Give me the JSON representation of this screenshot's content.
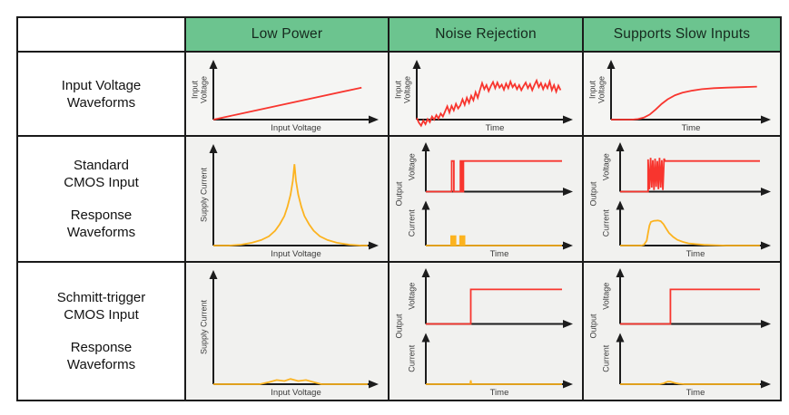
{
  "colors": {
    "header_bg": "#6cc48f",
    "header_text": "#16291e",
    "border": "#1a1a1a",
    "axis": "#1c1c1c",
    "red": "#f8352e",
    "orange": "#fcb31f",
    "label_text": "#121212",
    "axis_label_text": "#3b3b3b",
    "row1_cell_bg": "#f5f5f3",
    "row23_cell_bg": "#f1f1ef"
  },
  "header": {
    "corner": "",
    "columns": [
      "Low Power",
      "Noise Rejection",
      "Supports Slow Inputs"
    ]
  },
  "rows": [
    {
      "label_lines": [
        "Input Voltage",
        "Waveforms"
      ]
    },
    {
      "label_lines": [
        "Standard",
        "CMOS Input",
        "",
        "Response",
        "Waveforms"
      ]
    },
    {
      "label_lines": [
        "Schmitt-trigger",
        "CMOS Input",
        "",
        "Response",
        "Waveforms"
      ]
    }
  ],
  "charts": {
    "r1c1": {
      "kind": "single",
      "color": "red",
      "ylabel_lines": [
        "Input",
        "Voltage"
      ],
      "xlabel": "Input Voltage",
      "points": [
        [
          0,
          0
        ],
        [
          96,
          63
        ]
      ]
    },
    "r1c2": {
      "kind": "single",
      "color": "red",
      "ylabel_lines": [
        "Input",
        "Voltage"
      ],
      "xlabel": "Time",
      "points": [
        [
          0,
          3
        ],
        [
          1.5,
          -6
        ],
        [
          3,
          -12
        ],
        [
          4.5,
          -2
        ],
        [
          6,
          -9
        ],
        [
          7.5,
          1
        ],
        [
          9,
          -5
        ],
        [
          10.5,
          6
        ],
        [
          12,
          0
        ],
        [
          13.5,
          9
        ],
        [
          15,
          2
        ],
        [
          16.5,
          12
        ],
        [
          18,
          6
        ],
        [
          19.5,
          16
        ],
        [
          21,
          26
        ],
        [
          22.5,
          14
        ],
        [
          24,
          27
        ],
        [
          25.5,
          18
        ],
        [
          27,
          31
        ],
        [
          28.5,
          22
        ],
        [
          30,
          28
        ],
        [
          31.5,
          40
        ],
        [
          33,
          29
        ],
        [
          34.5,
          43
        ],
        [
          36,
          33
        ],
        [
          37.5,
          47
        ],
        [
          39,
          38
        ],
        [
          40.5,
          54
        ],
        [
          42,
          43
        ],
        [
          43.5,
          58
        ],
        [
          45,
          72
        ],
        [
          46.5,
          60
        ],
        [
          48,
          68
        ],
        [
          49.5,
          56
        ],
        [
          51,
          66
        ],
        [
          52.5,
          74
        ],
        [
          54,
          62
        ],
        [
          55.5,
          73
        ],
        [
          57,
          63
        ],
        [
          58.5,
          69
        ],
        [
          60,
          59
        ],
        [
          61.5,
          71
        ],
        [
          63,
          62
        ],
        [
          64.5,
          75
        ],
        [
          66,
          64
        ],
        [
          67.5,
          70
        ],
        [
          69,
          60
        ],
        [
          70.5,
          68
        ],
        [
          72,
          58
        ],
        [
          73.5,
          66
        ],
        [
          75,
          73
        ],
        [
          76.5,
          62
        ],
        [
          78,
          70
        ],
        [
          79.5,
          58
        ],
        [
          81,
          68
        ],
        [
          82.5,
          77
        ],
        [
          84,
          64
        ],
        [
          85.5,
          72
        ],
        [
          87,
          60
        ],
        [
          88.5,
          70
        ],
        [
          90,
          62
        ],
        [
          91.5,
          75
        ],
        [
          93,
          58
        ],
        [
          94.5,
          68
        ],
        [
          96,
          55
        ],
        [
          97.5,
          67
        ],
        [
          99,
          58
        ]
      ]
    },
    "r1c3": {
      "kind": "single",
      "color": "red",
      "ylabel_lines": [
        "Input",
        "Voltage"
      ],
      "xlabel": "Time",
      "points": [
        [
          0,
          0
        ],
        [
          14,
          0
        ],
        [
          18,
          1
        ],
        [
          22,
          4
        ],
        [
          26,
          10
        ],
        [
          30,
          20
        ],
        [
          34,
          31
        ],
        [
          38,
          40
        ],
        [
          43,
          48
        ],
        [
          48,
          53
        ],
        [
          54,
          57
        ],
        [
          61,
          60
        ],
        [
          69,
          62
        ],
        [
          78,
          63
        ],
        [
          88,
          64
        ],
        [
          98,
          65
        ]
      ]
    },
    "r2c1": {
      "kind": "single",
      "color": "orange",
      "ylabel_lines": [
        "Supply Current"
      ],
      "xlabel": "Input Voltage",
      "points": [
        [
          0,
          0
        ],
        [
          10,
          0
        ],
        [
          18,
          1
        ],
        [
          25,
          3
        ],
        [
          31,
          6
        ],
        [
          36,
          10
        ],
        [
          40,
          16
        ],
        [
          43,
          23
        ],
        [
          46,
          32
        ],
        [
          48,
          42
        ],
        [
          50,
          55
        ],
        [
          51.5,
          70
        ],
        [
          52.5,
          88
        ],
        [
          53.5,
          70
        ],
        [
          55,
          55
        ],
        [
          57,
          42
        ],
        [
          59,
          32
        ],
        [
          62,
          23
        ],
        [
          65,
          16
        ],
        [
          69,
          10
        ],
        [
          74,
          6
        ],
        [
          80,
          3
        ],
        [
          88,
          1
        ],
        [
          96,
          0
        ],
        [
          100,
          0
        ]
      ]
    },
    "r2c2": {
      "kind": "dual",
      "shared_ylabel": "Output",
      "xlabel": "Time",
      "plots": [
        {
          "ylabel": "Voltage",
          "color": "red",
          "points": [
            [
              0,
              0
            ],
            [
              19,
              0
            ],
            [
              19,
              76
            ],
            [
              20.6,
              76
            ],
            [
              20.6,
              0
            ],
            [
              25.4,
              0
            ],
            [
              25.4,
              76
            ],
            [
              26.6,
              76
            ],
            [
              26.6,
              0
            ],
            [
              27.6,
              0
            ],
            [
              27.6,
              76
            ],
            [
              100,
              76
            ]
          ]
        },
        {
          "ylabel": "Current",
          "color": "orange",
          "points": [
            [
              0,
              0
            ],
            [
              18.6,
              0
            ],
            [
              18.6,
              26
            ],
            [
              19.6,
              26
            ],
            [
              19.6,
              0
            ],
            [
              20.8,
              0
            ],
            [
              20.8,
              26
            ],
            [
              21.8,
              26
            ],
            [
              21.8,
              0
            ],
            [
              25.2,
              0
            ],
            [
              25.2,
              26
            ],
            [
              26.2,
              26
            ],
            [
              26.2,
              0
            ],
            [
              27.4,
              0
            ],
            [
              27.4,
              26
            ],
            [
              28.4,
              26
            ],
            [
              28.4,
              0
            ],
            [
              100,
              0
            ]
          ]
        }
      ]
    },
    "r2c3": {
      "kind": "dual",
      "shared_ylabel": "Output",
      "xlabel": "Time",
      "plots": [
        {
          "ylabel": "Voltage",
          "color": "red",
          "points": [
            [
              0,
              0
            ],
            [
              20,
              0
            ],
            [
              20,
              80
            ],
            [
              21,
              6
            ],
            [
              21.8,
              84
            ],
            [
              22.6,
              10
            ],
            [
              23.4,
              78
            ],
            [
              24.2,
              4
            ],
            [
              25,
              82
            ],
            [
              25.8,
              12
            ],
            [
              26.6,
              76
            ],
            [
              27.4,
              6
            ],
            [
              28.2,
              84
            ],
            [
              29,
              10
            ],
            [
              29.8,
              78
            ],
            [
              30.6,
              4
            ],
            [
              31.4,
              82
            ],
            [
              32.2,
              76
            ],
            [
              100,
              76
            ]
          ]
        },
        {
          "ylabel": "Current",
          "color": "orange",
          "points": [
            [
              0,
              0
            ],
            [
              15,
              0
            ],
            [
              17,
              2
            ],
            [
              19,
              14
            ],
            [
              20,
              36
            ],
            [
              21,
              56
            ],
            [
              22,
              66
            ],
            [
              24,
              69
            ],
            [
              27,
              70
            ],
            [
              29,
              68
            ],
            [
              31,
              60
            ],
            [
              33,
              47
            ],
            [
              35,
              35
            ],
            [
              38,
              24
            ],
            [
              41,
              16
            ],
            [
              45,
              10
            ],
            [
              49,
              6
            ],
            [
              54,
              4
            ],
            [
              60,
              2
            ],
            [
              68,
              1
            ],
            [
              76,
              0
            ],
            [
              100,
              0
            ]
          ]
        }
      ]
    },
    "r3c1": {
      "kind": "single",
      "color": "orange",
      "ylabel_lines": [
        "Supply Current"
      ],
      "xlabel": "Input Voltage",
      "points": [
        [
          0,
          0
        ],
        [
          30,
          0
        ],
        [
          36,
          2
        ],
        [
          41,
          4
        ],
        [
          46,
          3
        ],
        [
          50,
          5
        ],
        [
          55,
          3
        ],
        [
          60,
          4
        ],
        [
          65,
          2
        ],
        [
          70,
          0
        ],
        [
          100,
          0
        ]
      ]
    },
    "r3c2": {
      "kind": "dual",
      "shared_ylabel": "Output",
      "xlabel": "Time",
      "plots": [
        {
          "ylabel": "Voltage",
          "color": "red",
          "points": [
            [
              0,
              0
            ],
            [
              33,
              0
            ],
            [
              33,
              74
            ],
            [
              100,
              74
            ]
          ]
        },
        {
          "ylabel": "Current",
          "color": "orange",
          "points": [
            [
              0,
              0
            ],
            [
              32.6,
              0
            ],
            [
              33,
              9
            ],
            [
              33.4,
              0
            ],
            [
              100,
              0
            ]
          ]
        }
      ]
    },
    "r3c3": {
      "kind": "dual",
      "shared_ylabel": "Output",
      "xlabel": "Time",
      "plots": [
        {
          "ylabel": "Voltage",
          "color": "red",
          "points": [
            [
              0,
              0
            ],
            [
              36,
              0
            ],
            [
              36,
              74
            ],
            [
              100,
              74
            ]
          ]
        },
        {
          "ylabel": "Current",
          "color": "orange",
          "points": [
            [
              0,
              0
            ],
            [
              28,
              0
            ],
            [
              31,
              2
            ],
            [
              34,
              6
            ],
            [
              36,
              6
            ],
            [
              39,
              3
            ],
            [
              42,
              1
            ],
            [
              46,
              0
            ],
            [
              100,
              0
            ]
          ]
        }
      ]
    }
  }
}
